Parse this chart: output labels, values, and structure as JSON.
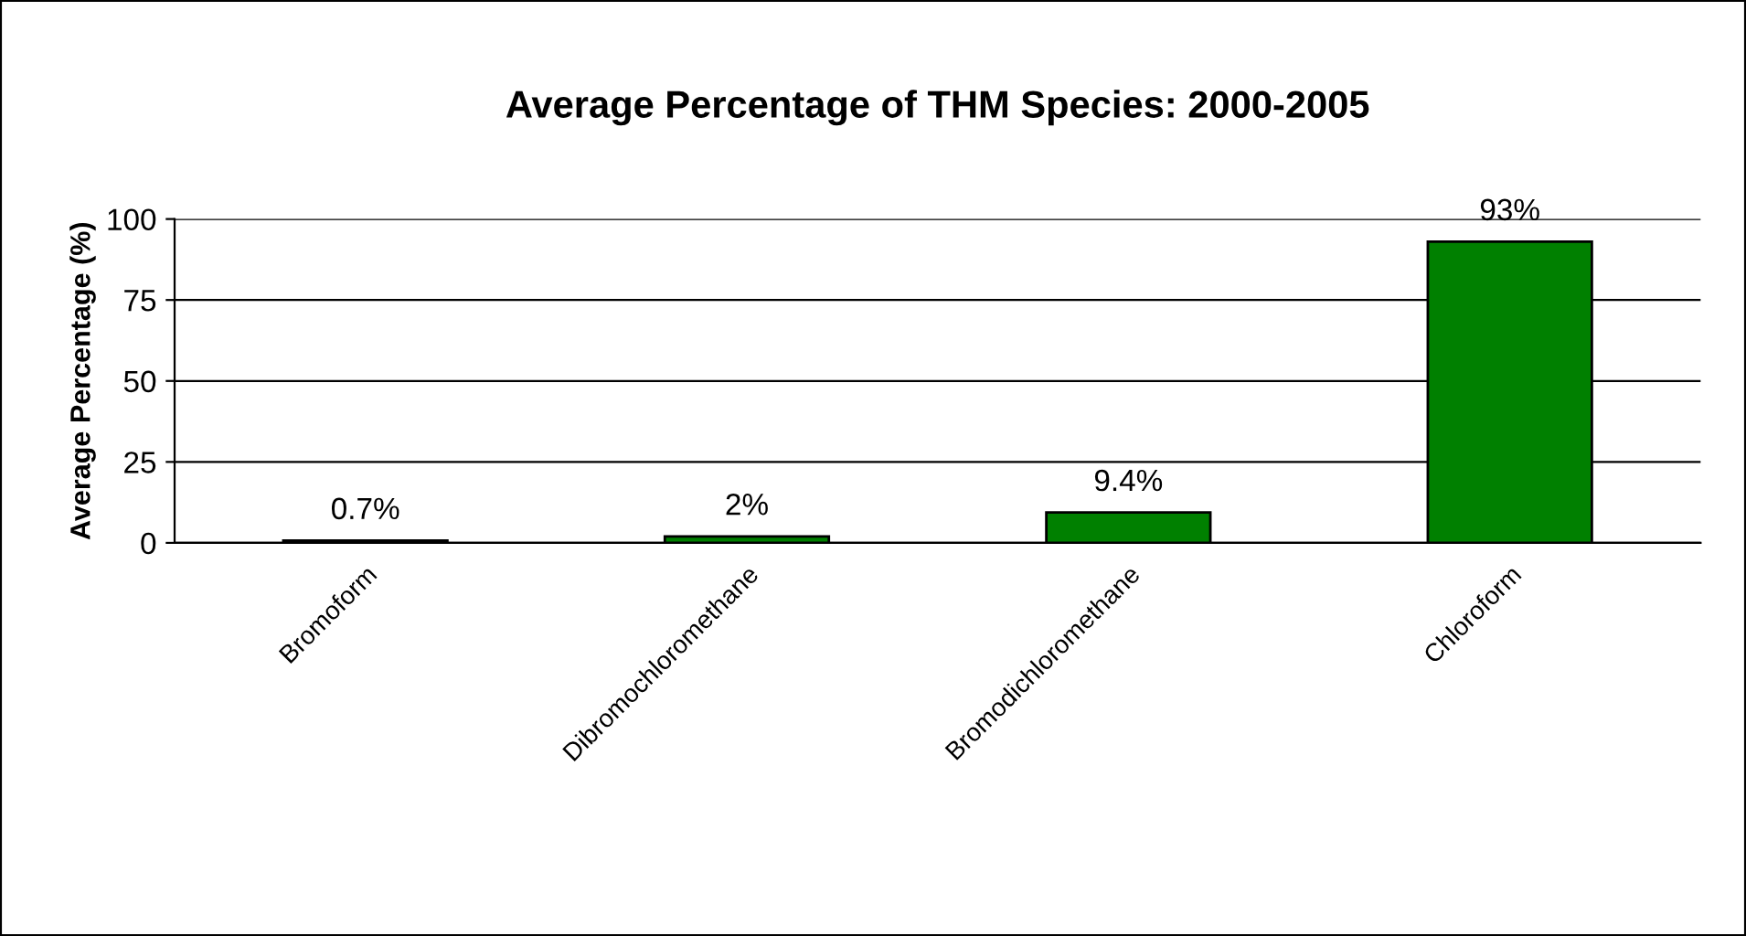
{
  "chart_data": {
    "type": "bar",
    "title": "Average Percentage of THM Species: 2000-2005",
    "ylabel": "Average Percentage (%)",
    "categories": [
      "Bromoform",
      "Dibromochloromethane",
      "Bromodichloromethane",
      "Chloroform"
    ],
    "values": [
      0.7,
      2,
      9.4,
      93
    ],
    "value_labels": [
      "0.7%",
      "2%",
      "9.4%",
      "93%"
    ],
    "color": "#008000",
    "ylim": [
      0,
      100
    ],
    "yticks": [
      0,
      25,
      50,
      75,
      100
    ],
    "grid": "y",
    "legend": false
  }
}
